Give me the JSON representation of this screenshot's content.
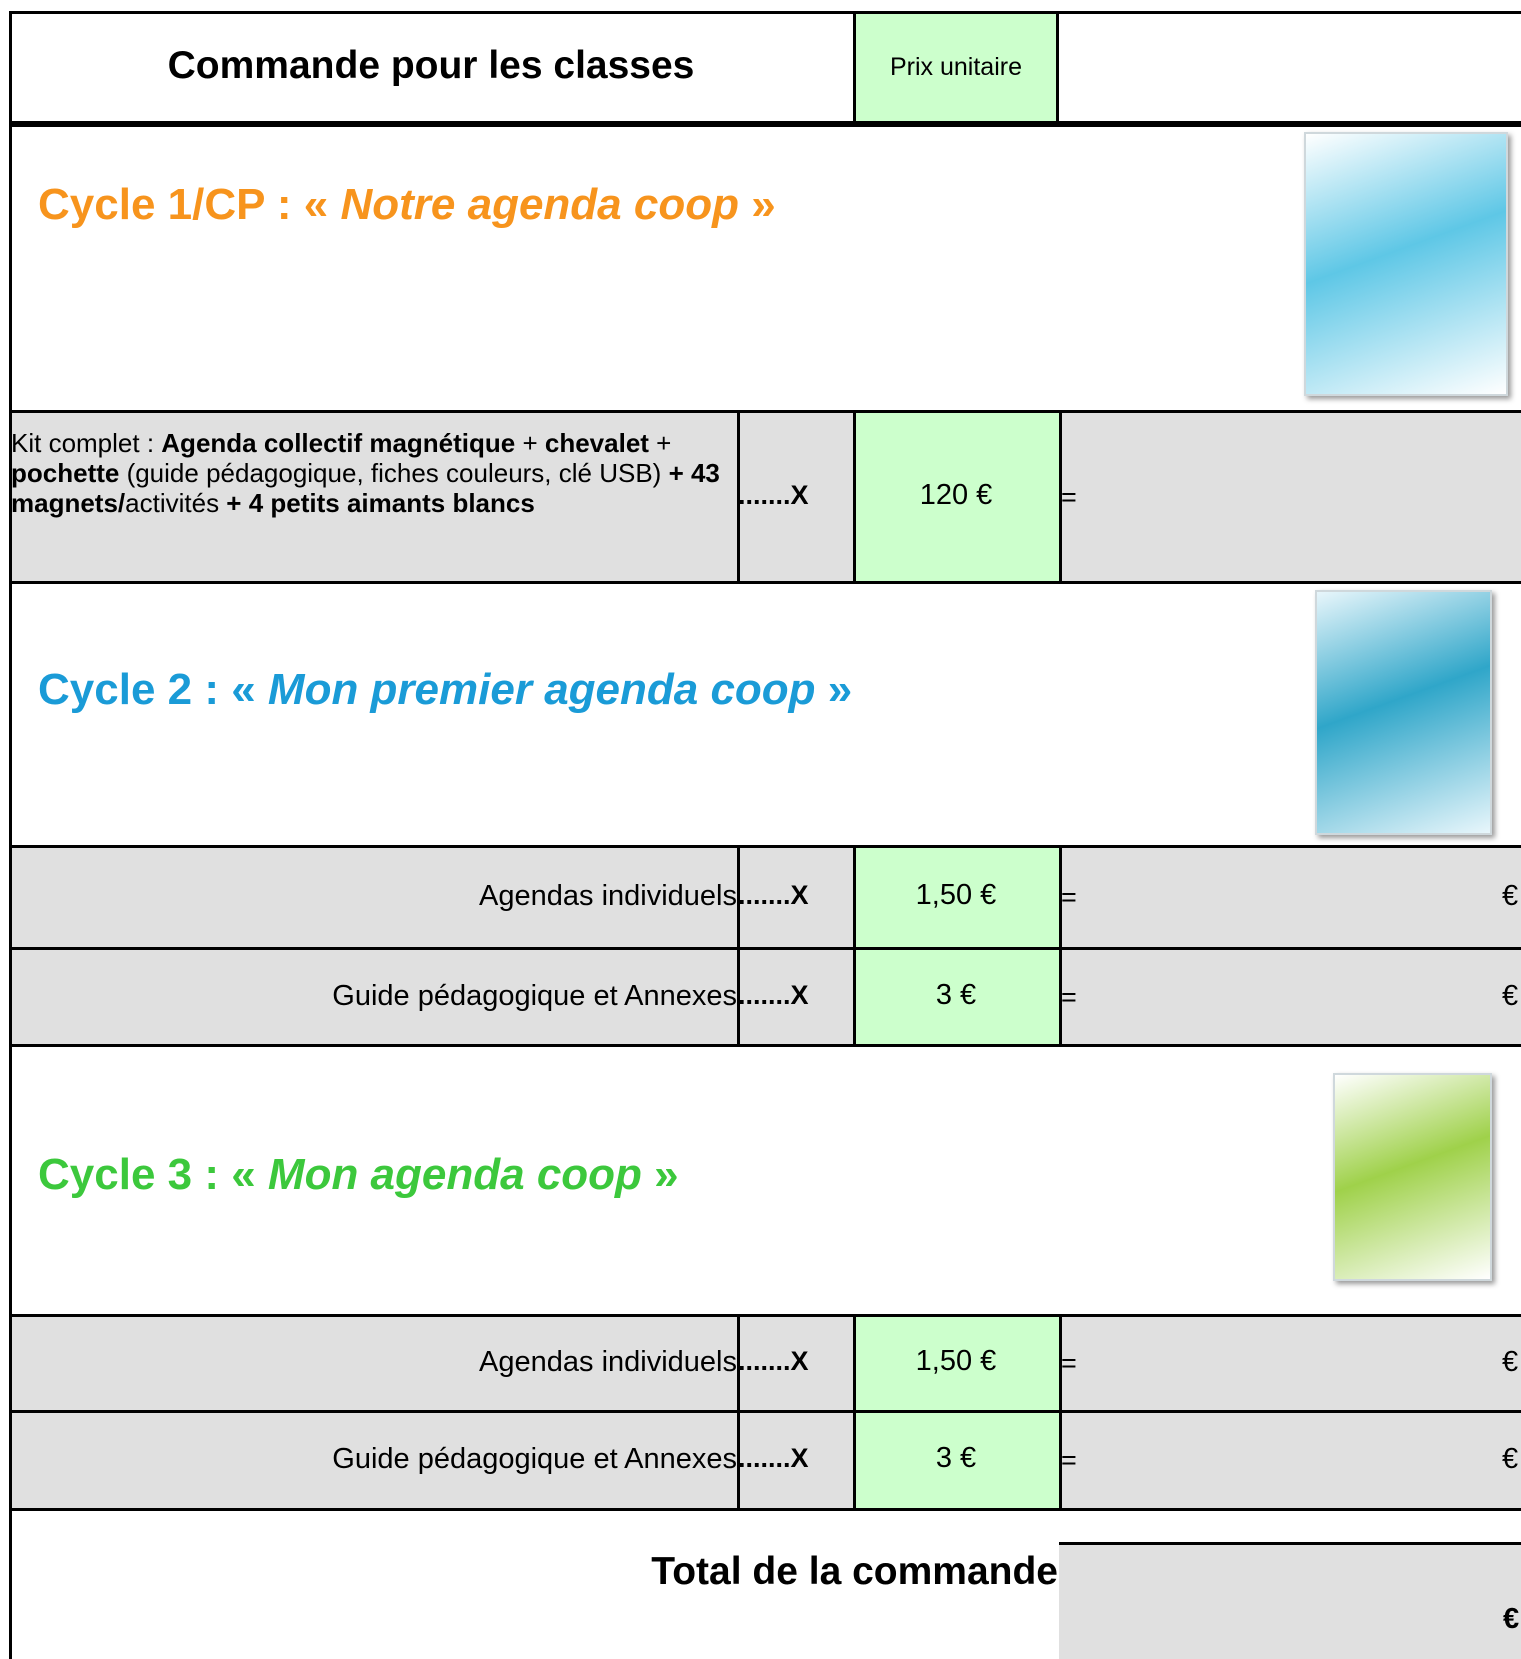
{
  "header": {
    "title": "Commande pour les classes",
    "price_header": "Prix unitaire"
  },
  "sections": [
    {
      "prefix": "Cycle 1/CP : «",
      "title": "Notre agenda coop",
      "suffix": "»",
      "color": "#f7941d",
      "rows": [
        {
          "description": [
            {
              "text": "Kit complet : ",
              "bold": false
            },
            {
              "text": "Agenda collectif magnétique",
              "bold": true
            },
            {
              "text": " + ",
              "bold": false
            },
            {
              "text": "cheva­let",
              "bold": true
            },
            {
              "text": " + ",
              "bold": false
            },
            {
              "text": "pochette",
              "bold": true
            },
            {
              "text": " (guide pédagogique, fiches couleurs, clé USB) ",
              "bold": false
            },
            {
              "text": "+ 43 magnets/",
              "bold": true
            },
            {
              "text": "activités",
              "bold": false
            },
            {
              "text": " + 4 petits aimants blancs",
              "bold": true
            }
          ],
          "quantity": ".......X",
          "price": "120 €",
          "equals": "="
        }
      ]
    },
    {
      "prefix": "Cycle 2 : «",
      "title": "Mon premier agenda coop",
      "suffix": "»",
      "color": "#1a9bd7",
      "rows": [
        {
          "label": "Agendas individuels",
          "quantity": ".......X",
          "price": "1,50 €",
          "equals": "=",
          "currency": "€"
        },
        {
          "label": "Guide pédagogique et Annexes",
          "quantity": ".......X",
          "price": "3 €",
          "equals": "=",
          "currency": "€"
        }
      ]
    },
    {
      "prefix": "Cycle 3 : «",
      "title": "Mon agenda coop",
      "suffix": "»",
      "color": "#3cc83c",
      "rows": [
        {
          "label": "Agendas individuels",
          "quantity": ".......X",
          "price": "1,50 €",
          "equals": "=",
          "currency": "€"
        },
        {
          "label": "Guide pédagogique et Annexes",
          "quantity": ".......X",
          "price": "3 €",
          "equals": "=",
          "currency": "€"
        }
      ]
    }
  ],
  "total": {
    "label": "Total de la commande",
    "currency": "€"
  }
}
